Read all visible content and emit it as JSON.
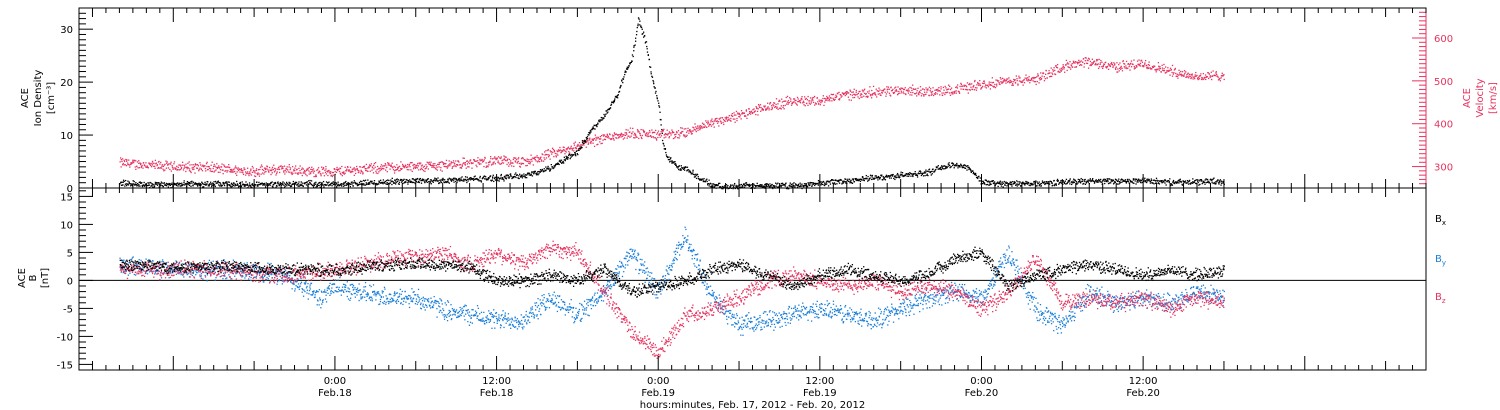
{
  "colors": {
    "black": "#000000",
    "pink": "#e6335f",
    "blue": "#1a7ed8"
  },
  "xaxis": {
    "range_hours": [
      -19,
      81
    ],
    "ticks": [
      {
        "h": 0,
        "time": "0:00",
        "date": "Feb.18"
      },
      {
        "h": 12,
        "time": "12:00",
        "date": "Feb.18"
      },
      {
        "h": 24,
        "time": "0:00",
        "date": "Feb.19"
      },
      {
        "h": 36,
        "time": "12:00",
        "date": "Feb.19"
      },
      {
        "h": 48,
        "time": "0:00",
        "date": "Feb.20"
      },
      {
        "h": 60,
        "time": "12:00",
        "date": "Feb.20"
      }
    ],
    "title": "hours:minutes, Feb. 17, 2012 - Feb. 20, 2012"
  },
  "chart_data": [
    {
      "type": "scatter",
      "panel": "top",
      "ylabel_left": [
        "ACE",
        "Ion Density",
        "[cm⁻³]"
      ],
      "ylabel_right": [
        "ACE",
        "Velocity",
        "[km/s]"
      ],
      "ylim_left": [
        0,
        34
      ],
      "yticks_left": [
        0,
        10,
        20,
        30
      ],
      "ylim_right": [
        250,
        670
      ],
      "yticks_right": [
        300,
        400,
        500,
        600
      ],
      "series": [
        {
          "color": "#000000",
          "axis": "left",
          "x": [
            -16,
            -14,
            -12,
            -10,
            -8,
            -6,
            -4,
            -2,
            0,
            2,
            4,
            6,
            8,
            10,
            12,
            14,
            15,
            16,
            17,
            18,
            19,
            20,
            21,
            21.5,
            22,
            22.5,
            23,
            23.3,
            23.6,
            24,
            24.3,
            24.6,
            25,
            25.5,
            26,
            27,
            28,
            29,
            30,
            32,
            34,
            36,
            38,
            40,
            42,
            44,
            45,
            46,
            47,
            48,
            49,
            50,
            52,
            54,
            56,
            58,
            60,
            62,
            64,
            65,
            66
          ],
          "y": [
            1,
            0.8,
            0.8,
            0.9,
            0.8,
            0.7,
            0.8,
            0.9,
            0.8,
            1,
            1.3,
            1.5,
            1.5,
            1.8,
            2,
            2.5,
            3,
            4,
            5.5,
            7,
            11,
            14,
            18,
            22,
            24,
            32,
            28,
            24,
            20,
            16,
            9,
            6,
            5,
            4,
            4,
            2,
            0.5,
            0.3,
            0.5,
            0.5,
            0.5,
            1,
            1.5,
            2,
            2.5,
            3,
            4,
            4.5,
            4,
            1.2,
            1,
            0.9,
            1,
            1.2,
            1.5,
            1.3,
            1.5,
            1.2,
            1.2,
            1.5,
            1
          ]
        },
        {
          "color": "#e6335f",
          "axis": "right",
          "x": [
            -16,
            -14,
            -12,
            -10,
            -8,
            -6,
            -4,
            -2,
            0,
            2,
            4,
            6,
            8,
            10,
            12,
            14,
            16,
            18,
            20,
            22,
            24,
            26,
            28,
            30,
            32,
            34,
            36,
            38,
            40,
            42,
            44,
            46,
            48,
            50,
            52,
            54,
            56,
            58,
            60,
            62,
            64,
            66
          ],
          "y": [
            310,
            305,
            300,
            300,
            295,
            290,
            295,
            290,
            290,
            295,
            300,
            300,
            305,
            310,
            315,
            310,
            330,
            350,
            370,
            380,
            375,
            380,
            405,
            420,
            440,
            455,
            455,
            470,
            475,
            480,
            475,
            480,
            495,
            500,
            505,
            535,
            545,
            535,
            540,
            525,
            510,
            515
          ]
        }
      ]
    },
    {
      "type": "scatter",
      "panel": "bottom",
      "ylabel": [
        "ACE",
        "B",
        "[nT]"
      ],
      "ylim": [
        -16,
        16.5
      ],
      "yticks": [
        -15,
        -10,
        -5,
        0,
        5,
        10,
        15
      ],
      "legend": [
        {
          "label": "B",
          "sub": "x",
          "color": "#000000"
        },
        {
          "label": "B",
          "sub": "y",
          "color": "#1a7ed8"
        },
        {
          "label": "B",
          "sub": "z",
          "color": "#e6335f"
        }
      ],
      "series": [
        {
          "color": "#000000",
          "sub": "x",
          "x": [
            -16,
            -12,
            -8,
            -4,
            0,
            2,
            4,
            6,
            8,
            10,
            12,
            14,
            16,
            18,
            20,
            22,
            24,
            26,
            28,
            30,
            32,
            34,
            36,
            38,
            40,
            42,
            44,
            46,
            48,
            50,
            52,
            54,
            56,
            58,
            60,
            62,
            64,
            66
          ],
          "y": [
            3,
            2.5,
            2.5,
            2,
            2,
            2.5,
            3,
            3,
            3,
            2.5,
            0,
            0,
            1,
            0,
            2,
            -2,
            -1,
            0,
            2,
            3,
            1,
            -1,
            1,
            2,
            1,
            0,
            1,
            4,
            5,
            -1,
            1,
            2,
            3,
            2,
            1,
            2,
            1,
            2
          ]
        },
        {
          "color": "#1a7ed8",
          "sub": "y",
          "x": [
            -16,
            -12,
            -8,
            -4,
            -1,
            0,
            2,
            4,
            6,
            8,
            10,
            12,
            14,
            16,
            18,
            20,
            22,
            24,
            26,
            28,
            30,
            32,
            34,
            36,
            38,
            40,
            42,
            44,
            46,
            48,
            50,
            52,
            54,
            56,
            58,
            60,
            62,
            64,
            66
          ],
          "y": [
            3,
            2,
            2,
            1,
            -3,
            -1,
            -2,
            -3,
            -3,
            -5,
            -6,
            -7,
            -7,
            -3,
            -6,
            -2,
            5,
            -2,
            8,
            -3,
            -8,
            -7,
            -6,
            -5,
            -6,
            -7,
            -5,
            -3,
            -2,
            -3,
            5,
            -5,
            -8,
            -2,
            -4,
            -3,
            -4,
            -2,
            -3
          ]
        },
        {
          "color": "#e6335f",
          "sub": "z",
          "x": [
            -16,
            -12,
            -8,
            -4,
            0,
            2,
            4,
            6,
            8,
            10,
            12,
            14,
            16,
            18,
            20,
            22,
            24,
            26,
            28,
            30,
            32,
            34,
            36,
            38,
            40,
            42,
            44,
            46,
            48,
            50,
            52,
            54,
            56,
            58,
            60,
            62,
            64,
            66
          ],
          "y": [
            2,
            2,
            2,
            1,
            2,
            3,
            4,
            4,
            5,
            3,
            5,
            3,
            6,
            5,
            -2,
            -9,
            -13,
            -6,
            -5,
            -3,
            0,
            1,
            0,
            -1,
            0,
            -2,
            -1,
            -2,
            -5,
            -2,
            4,
            -4,
            -3,
            -4,
            -3,
            -5,
            -3,
            -4
          ]
        }
      ]
    }
  ]
}
